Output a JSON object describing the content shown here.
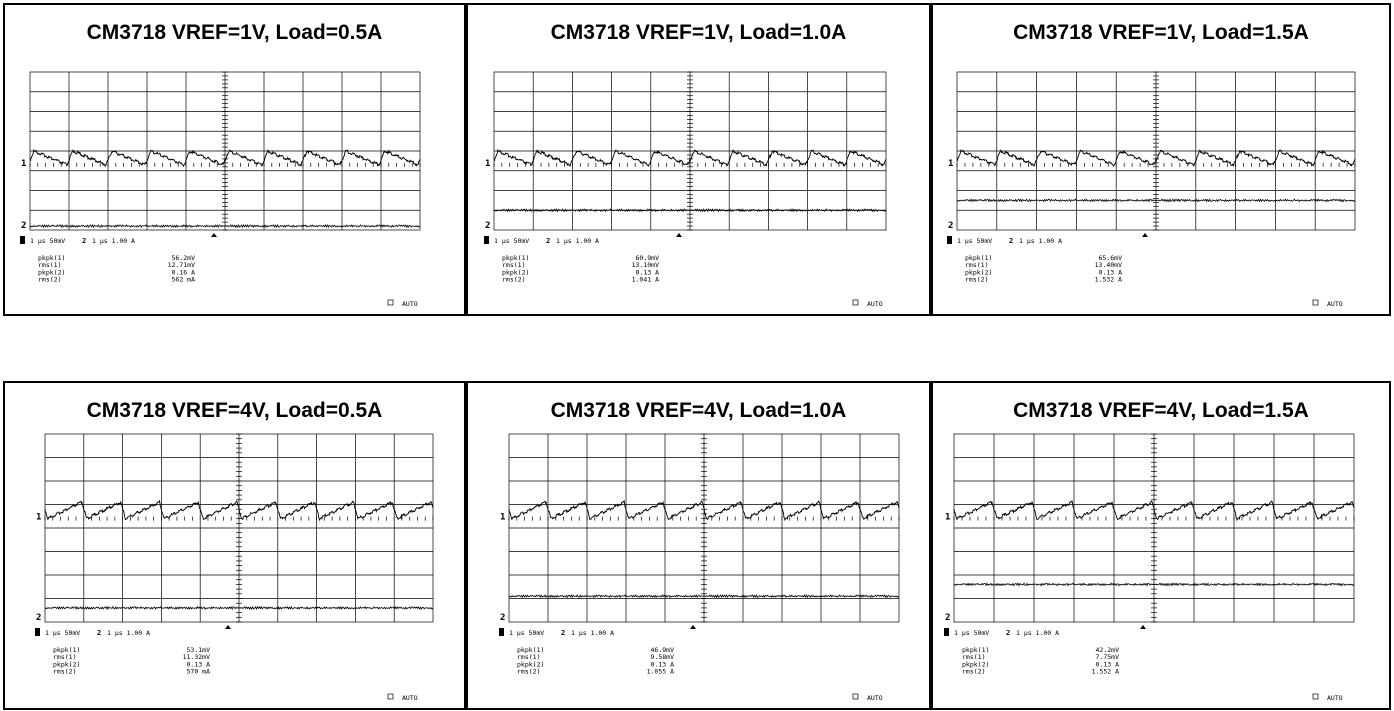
{
  "chart_data": [
    {
      "type": "line",
      "title": "CM3718 VREF=1V, Load=0.5A",
      "settings": {
        "ch1": "1 μs 50mV",
        "ch2": "1 μs 1.00 A"
      },
      "trace1_level_div": 3.3,
      "trace2_level_div": 0.2,
      "ripple_shape": "rise",
      "measurements": [
        {
          "label": "pkpk(1)",
          "value": "56.2mV"
        },
        {
          "label": "rms(1)",
          "value": "12.71mV"
        },
        {
          "label": "pkpk(2)",
          "value": "0.16 A"
        },
        {
          "label": "rms(2)",
          "value": "562 mA"
        }
      ],
      "mode": "AUTO"
    },
    {
      "type": "line",
      "title": "CM3718 VREF=1V, Load=1.0A",
      "settings": {
        "ch1": "1 μs 50mV",
        "ch2": "1 μs 1.00 A"
      },
      "trace1_level_div": 3.3,
      "trace2_level_div": 1.0,
      "ripple_shape": "rise",
      "measurements": [
        {
          "label": "pkpk(1)",
          "value": "60.9mV"
        },
        {
          "label": "rms(1)",
          "value": "13.10mV"
        },
        {
          "label": "pkpk(2)",
          "value": "0.13 A"
        },
        {
          "label": "rms(2)",
          "value": "1.041 A"
        }
      ],
      "mode": "AUTO"
    },
    {
      "type": "line",
      "title": "CM3718 VREF=1V, Load=1.5A",
      "settings": {
        "ch1": "1 μs 50mV",
        "ch2": "1 μs 1.00 A"
      },
      "trace1_level_div": 3.3,
      "trace2_level_div": 1.5,
      "ripple_shape": "rise",
      "measurements": [
        {
          "label": "pkpk(1)",
          "value": "65.6mV"
        },
        {
          "label": "rms(1)",
          "value": "13.40mV"
        },
        {
          "label": "pkpk(2)",
          "value": "0.13 A"
        },
        {
          "label": "rms(2)",
          "value": "1.532 A"
        }
      ],
      "mode": "AUTO"
    },
    {
      "type": "line",
      "title": "CM3718 VREF=4V, Load=0.5A",
      "settings": {
        "ch1": "1 μs 50mV",
        "ch2": "1 μs 1.00 A"
      },
      "trace1_level_div": 4.4,
      "trace2_level_div": 0.6,
      "ripple_shape": "drop",
      "measurements": [
        {
          "label": "pkpk(1)",
          "value": "53.1mV"
        },
        {
          "label": "rms(1)",
          "value": "11.32mV"
        },
        {
          "label": "pkpk(2)",
          "value": "0.13 A"
        },
        {
          "label": "rms(2)",
          "value": "570 mA"
        }
      ],
      "mode": "AUTO"
    },
    {
      "type": "line",
      "title": "CM3718 VREF=4V, Load=1.0A",
      "settings": {
        "ch1": "1 μs 50mV",
        "ch2": "1 μs 1.00 A"
      },
      "trace1_level_div": 4.4,
      "trace2_level_div": 1.1,
      "ripple_shape": "drop",
      "measurements": [
        {
          "label": "pkpk(1)",
          "value": "46.9mV"
        },
        {
          "label": "rms(1)",
          "value": "9.58mV"
        },
        {
          "label": "pkpk(2)",
          "value": "0.13 A"
        },
        {
          "label": "rms(2)",
          "value": "1.055 A"
        }
      ],
      "mode": "AUTO"
    },
    {
      "type": "line",
      "title": "CM3718 VREF=4V, Load=1.5A",
      "settings": {
        "ch1": "1 μs 50mV",
        "ch2": "1 μs 1.00 A"
      },
      "trace1_level_div": 4.4,
      "trace2_level_div": 1.6,
      "ripple_shape": "drop",
      "measurements": [
        {
          "label": "pkpk(1)",
          "value": "42.2mV"
        },
        {
          "label": "rms(1)",
          "value": "7.75mV"
        },
        {
          "label": "pkpk(2)",
          "value": "0.13 A"
        },
        {
          "label": "rms(2)",
          "value": "1.552 A"
        }
      ],
      "mode": "AUTO"
    }
  ],
  "labels": {
    "ch1_marker": "1",
    "ch2_marker": "2",
    "ch_label_1": "1",
    "ch_label_2": "2"
  },
  "colors": {
    "trace": "#000000",
    "grid": "#000000",
    "background": "#ffffff"
  }
}
